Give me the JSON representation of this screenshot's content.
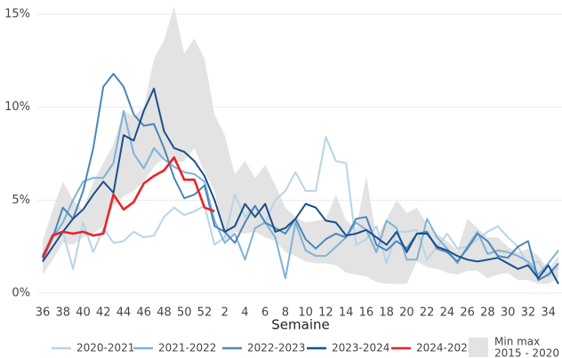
{
  "chart_data": {
    "type": "line",
    "xlabel": "Semaine",
    "categories": [
      "36",
      null,
      "38",
      null,
      "40",
      null,
      "42",
      null,
      "44",
      null,
      "46",
      null,
      "48",
      null,
      "50",
      null,
      "52",
      null,
      "2",
      null,
      "4",
      null,
      "6",
      null,
      "8",
      null,
      "10",
      null,
      "12",
      null,
      "14",
      null,
      "16",
      null,
      "18",
      null,
      "20",
      null,
      "22",
      null,
      "24",
      null,
      "26",
      null,
      "28",
      null,
      "30",
      null,
      "32",
      null,
      "34",
      null
    ],
    "ylim": [
      0,
      15.4
    ],
    "yticks": [
      {
        "value": 0,
        "label": "0%"
      },
      {
        "value": 5,
        "label": "5%"
      },
      {
        "value": 10,
        "label": "10%"
      },
      {
        "value": 15,
        "label": "15%"
      }
    ],
    "grid": true,
    "legend": "bottom",
    "band": {
      "label": [
        "Min max",
        "2015 - 2020"
      ],
      "color": "#e3e3e3",
      "max": [
        2.8,
        4.5,
        6.0,
        5.0,
        4.5,
        6.0,
        7.0,
        8.0,
        9.8,
        9.5,
        10.0,
        12.6,
        13.6,
        15.4,
        12.9,
        13.7,
        12.6,
        9.6,
        8.5,
        6.4,
        7.1,
        6.2,
        6.9,
        5.8,
        4.6,
        4.1,
        3.8,
        3.9,
        4.0,
        5.3,
        3.9,
        3.5,
        6.3,
        3.0,
        4.0,
        5.0,
        4.3,
        4.6,
        3.7,
        3.2,
        2.8,
        2.3,
        4.0,
        3.5,
        3.0,
        3.0,
        2.5,
        2.2,
        2.4,
        2.0,
        1.3,
        2.0
      ],
      "min": [
        1.0,
        1.8,
        2.7,
        2.6,
        3.0,
        3.2,
        3.6,
        4.7,
        5.2,
        5.5,
        6.0,
        6.8,
        7.3,
        7.0,
        7.1,
        7.8,
        6.5,
        5.5,
        2.8,
        3.3,
        3.2,
        3.3,
        3.0,
        2.8,
        2.2,
        2.0,
        1.7,
        1.6,
        1.6,
        1.5,
        1.1,
        1.0,
        0.9,
        0.6,
        0.5,
        0.5,
        0.5,
        1.7,
        1.4,
        1.3,
        1.1,
        1.0,
        1.2,
        1.2,
        0.8,
        1.0,
        1.1,
        0.7,
        0.7,
        0.5,
        0.5,
        0.8
      ]
    },
    "series": [
      {
        "name": "2020-2021",
        "color": "#b9d4e6",
        "values": [
          2.1,
          3.2,
          3.3,
          1.3,
          3.8,
          2.2,
          3.5,
          2.7,
          2.8,
          3.3,
          3.0,
          3.1,
          4.1,
          4.6,
          4.2,
          4.4,
          4.7,
          2.6,
          3.0,
          5.3,
          4.1,
          4.7,
          3.8,
          5.0,
          5.5,
          6.5,
          5.5,
          5.5,
          8.4,
          7.1,
          7.0,
          2.6,
          2.9,
          3.6,
          1.6,
          3.3,
          3.3,
          3.4,
          1.8,
          2.5,
          3.2,
          2.4,
          2.5,
          2.9,
          3.3,
          3.6,
          3.0,
          2.5,
          1.5,
          1.7,
          0.9,
          1.4
        ]
      },
      {
        "name": "2021-2022",
        "color": "#7fb2d6",
        "values": [
          1.8,
          3.0,
          3.8,
          5.0,
          6.0,
          6.2,
          6.2,
          7.0,
          9.8,
          7.5,
          6.7,
          7.8,
          7.2,
          6.8,
          6.5,
          6.4,
          6.0,
          3.9,
          2.7,
          3.2,
          1.8,
          3.5,
          3.8,
          3.0,
          0.8,
          3.8,
          2.3,
          2.0,
          2.0,
          2.5,
          3.0,
          3.8,
          3.4,
          2.2,
          3.9,
          3.5,
          1.8,
          1.8,
          4.0,
          3.0,
          2.4,
          1.6,
          2.5,
          3.3,
          2.1,
          2.3,
          2.2,
          2.0,
          1.7,
          1.0,
          1.6,
          2.3
        ]
      },
      {
        "name": "2022-2023",
        "color": "#4a86bb",
        "values": [
          2.0,
          3.0,
          4.6,
          4.0,
          5.5,
          7.8,
          11.1,
          11.8,
          11.1,
          9.6,
          9.0,
          9.1,
          7.8,
          6.2,
          5.1,
          5.3,
          5.8,
          3.6,
          3.3,
          2.7,
          3.8,
          4.7,
          3.8,
          3.5,
          3.2,
          4.0,
          2.9,
          2.4,
          2.9,
          3.2,
          3.0,
          4.0,
          4.1,
          2.6,
          2.3,
          2.8,
          2.4,
          3.2,
          3.3,
          2.4,
          2.2,
          1.7,
          2.4,
          3.2,
          2.8,
          2.0,
          1.9,
          2.5,
          2.8,
          0.7,
          1.0,
          1.6
        ]
      },
      {
        "name": "2023-2024",
        "color": "#1a4f8a",
        "values": [
          1.7,
          2.5,
          3.3,
          4.0,
          4.5,
          5.3,
          6.0,
          5.4,
          8.5,
          8.2,
          9.8,
          11.0,
          8.7,
          7.8,
          7.6,
          7.1,
          6.3,
          5.0,
          3.3,
          3.6,
          4.8,
          4.1,
          4.8,
          3.3,
          3.5,
          4.0,
          4.8,
          4.6,
          3.9,
          3.8,
          3.1,
          3.2,
          3.4,
          3.0,
          2.6,
          3.3,
          2.2,
          3.2,
          3.2,
          2.5,
          2.3,
          2.0,
          1.8,
          1.7,
          1.8,
          1.9,
          1.6,
          1.3,
          1.5,
          0.8,
          1.5,
          0.5
        ]
      },
      {
        "name": "2024-2025",
        "color": "#e8242a",
        "values": [
          1.9,
          3.1,
          3.3,
          3.2,
          3.3,
          3.1,
          3.2,
          5.3,
          4.5,
          4.9,
          5.9,
          6.3,
          6.6,
          7.3,
          6.1,
          6.1,
          4.6,
          4.4,
          null,
          null,
          null,
          null,
          null,
          null,
          null,
          null,
          null,
          null,
          null,
          null,
          null,
          null,
          null,
          null,
          null,
          null,
          null,
          null,
          null,
          null,
          null,
          null,
          null,
          null,
          null,
          null,
          null,
          null,
          null,
          null,
          null,
          null
        ]
      }
    ]
  }
}
